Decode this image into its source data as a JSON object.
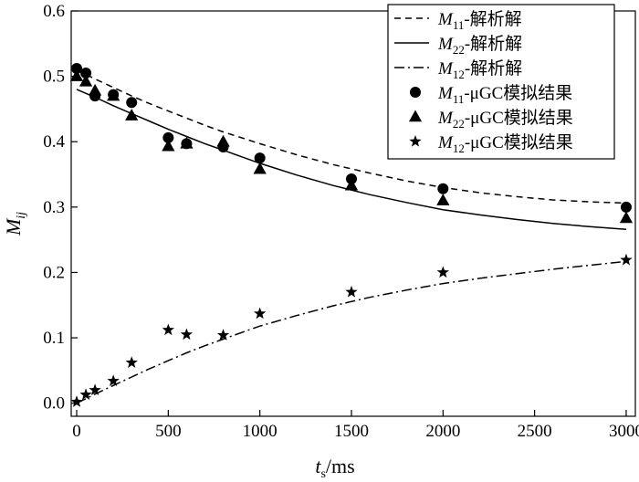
{
  "chart_data": {
    "type": "scatter",
    "title": "",
    "xlabel": {
      "main": "t",
      "sub": "s",
      "suffix": "/ms"
    },
    "ylabel": {
      "main": "M",
      "sub": "ij"
    },
    "xlim": [
      -30,
      3050
    ],
    "ylim": [
      -0.02,
      0.6
    ],
    "x_ticks": [
      0,
      500,
      1000,
      1500,
      2000,
      2500,
      3000
    ],
    "x_tick_labels": [
      "0",
      "500",
      "1000",
      "1500",
      "2000",
      "2500",
      "3000"
    ],
    "y_ticks": [
      0.0,
      0.1,
      0.2,
      0.3,
      0.4,
      0.5,
      0.6
    ],
    "y_tick_labels": [
      "0.0",
      "0.1",
      "0.2",
      "0.3",
      "0.4",
      "0.5",
      "0.6"
    ],
    "legend_position": "top-right",
    "curves": [
      {
        "name": "M11-解析解",
        "label_main": "M",
        "label_sub": "11",
        "label_suffix": "-解析解",
        "style": "dashed",
        "x": [
          0,
          100,
          200,
          300,
          400,
          500,
          600,
          700,
          800,
          900,
          1000,
          1200,
          1400,
          1600,
          1800,
          2000,
          2200,
          2400,
          2600,
          2800,
          3000
        ],
        "y": [
          0.51,
          0.496,
          0.483,
          0.47,
          0.458,
          0.447,
          0.436,
          0.425,
          0.415,
          0.406,
          0.397,
          0.38,
          0.365,
          0.352,
          0.34,
          0.33,
          0.322,
          0.316,
          0.311,
          0.308,
          0.306
        ]
      },
      {
        "name": "M22-解析解",
        "label_main": "M",
        "label_sub": "22",
        "label_suffix": "-解析解",
        "style": "solid",
        "x": [
          0,
          100,
          200,
          300,
          400,
          500,
          600,
          700,
          800,
          900,
          1000,
          1200,
          1400,
          1600,
          1800,
          2000,
          2200,
          2400,
          2600,
          2800,
          3000
        ],
        "y": [
          0.48,
          0.468,
          0.455,
          0.443,
          0.431,
          0.419,
          0.408,
          0.397,
          0.387,
          0.377,
          0.367,
          0.349,
          0.333,
          0.319,
          0.307,
          0.296,
          0.288,
          0.281,
          0.275,
          0.27,
          0.266
        ]
      },
      {
        "name": "M12-解析解",
        "label_main": "M",
        "label_sub": "12",
        "label_suffix": "-解析解",
        "style": "dashdot",
        "x": [
          0,
          50,
          100,
          200,
          300,
          400,
          500,
          600,
          700,
          800,
          900,
          1000,
          1200,
          1400,
          1600,
          1800,
          2000,
          2200,
          2400,
          2600,
          2800,
          3000
        ],
        "y": [
          0.0,
          0.007,
          0.014,
          0.027,
          0.04,
          0.053,
          0.065,
          0.077,
          0.088,
          0.098,
          0.108,
          0.118,
          0.134,
          0.149,
          0.162,
          0.173,
          0.183,
          0.191,
          0.198,
          0.205,
          0.211,
          0.217
        ]
      }
    ],
    "points": [
      {
        "name": "M11-μGC模拟结果",
        "label_main": "M",
        "label_sub": "11",
        "label_suffix": "-μGC模拟结果",
        "marker": "circle",
        "x": [
          0,
          50,
          100,
          200,
          300,
          500,
          600,
          800,
          1000,
          1500,
          2000,
          3000
        ],
        "y": [
          0.512,
          0.505,
          0.47,
          0.472,
          0.46,
          0.406,
          0.397,
          0.392,
          0.375,
          0.343,
          0.328,
          0.3
        ]
      },
      {
        "name": "M22-μGC模拟结果",
        "label_main": "M",
        "label_sub": "22",
        "label_suffix": "-μGC模拟结果",
        "marker": "triangle",
        "x": [
          0,
          50,
          100,
          200,
          300,
          500,
          600,
          800,
          1000,
          1500,
          2000,
          3000
        ],
        "y": [
          0.5,
          0.492,
          0.478,
          0.47,
          0.44,
          0.393,
          0.397,
          0.4,
          0.358,
          0.333,
          0.31,
          0.283
        ]
      },
      {
        "name": "M12-μGC模拟结果",
        "label_main": "M",
        "label_sub": "12",
        "label_suffix": "-μGC模拟结果",
        "marker": "star",
        "x": [
          0,
          50,
          100,
          200,
          300,
          500,
          600,
          800,
          1000,
          1500,
          2000,
          3000
        ],
        "y": [
          0.002,
          0.013,
          0.02,
          0.034,
          0.062,
          0.112,
          0.105,
          0.104,
          0.137,
          0.17,
          0.2,
          0.219
        ]
      }
    ]
  }
}
